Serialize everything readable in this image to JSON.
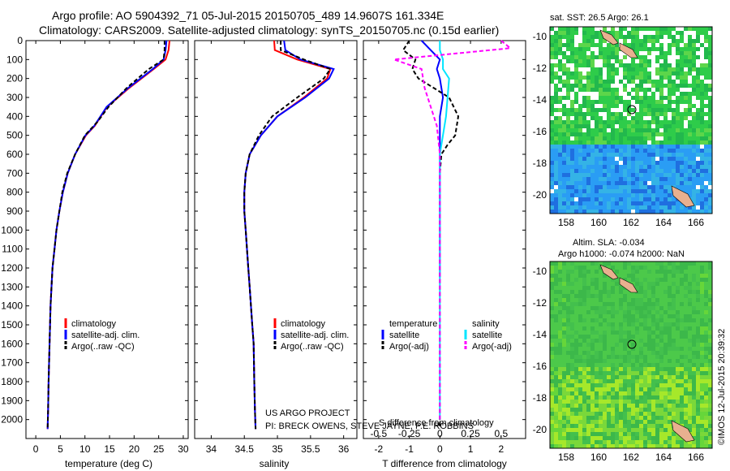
{
  "header": {
    "line1": "Argo profile: AO 5904392_71 05-Jul-2015 20150705_489 14.9607S 161.334E",
    "line2": "Climatology: CARS2009. Satellite-adjusted climatology: synTS_20150705.nc (0.15d earlier)"
  },
  "colors": {
    "climatology": "#ff0000",
    "satellite": "#0000ff",
    "argo": "#000000",
    "salinity_satellite": "#00e5ff",
    "salinity_argo": "#ff00ff"
  },
  "panels": {
    "temperature": {
      "xlabel": "temperature (deg C)",
      "xticks": [
        "0",
        "5",
        "10",
        "15",
        "20",
        "25",
        "30"
      ],
      "legend": [
        "climatology",
        "satellite-adj. clim.",
        "Argo(..raw -QC)"
      ]
    },
    "salinity": {
      "xlabel": "salinity",
      "xticks": [
        "34",
        "34.5",
        "35",
        "35.5",
        "36"
      ],
      "legend": [
        "climatology",
        "satellite-adj. clim.",
        "Argo(..raw -QC)"
      ],
      "credit1": "US ARGO PROJECT",
      "credit2": "PI: BRECK OWENS, STEVE JAYNE, P.E. ROBBINS"
    },
    "difference": {
      "xlabel": "T difference from climatology",
      "xticks": [
        "-2",
        "-1",
        "0",
        "1",
        "2"
      ],
      "top_label": "S difference from climatology",
      "top_ticks": [
        "-0.5",
        "-0.25",
        "0",
        "0.25",
        "0.5"
      ],
      "legend_temperature_title": "temperature",
      "legend_salinity_title": "salinity",
      "legend_items": [
        "satellite",
        "Argo(-adj)",
        "satellite",
        "Argo(-adj)"
      ]
    },
    "depth_ticks": [
      "0",
      "100",
      "200",
      "300",
      "400",
      "500",
      "600",
      "700",
      "800",
      "900",
      "1000",
      "1100",
      "1200",
      "1300",
      "1400",
      "1500",
      "1600",
      "1700",
      "1800",
      "1900",
      "2000"
    ]
  },
  "maps": {
    "sst_title": "sat. SST: 26.5  Argo: 26.1",
    "sla_title1": "Altim. SLA: -0.034",
    "sla_title2": "Argo h1000: -0.074  h2000: NaN",
    "lat_ticks": [
      "-10",
      "-12",
      "-14",
      "-16",
      "-18",
      "-20"
    ],
    "lon_ticks": [
      "158",
      "160",
      "162",
      "164",
      "166"
    ]
  },
  "footer": {
    "stamp": "©IMOS 12-Jul-2015 20:39:32"
  },
  "chart_data": [
    {
      "type": "line",
      "title": "",
      "xlabel": "temperature (deg C)",
      "ylabel": "",
      "xlim": [
        -2,
        31
      ],
      "ylim": [
        2100,
        0
      ],
      "series": [
        {
          "name": "climatology",
          "x": [
            27.2,
            27.0,
            26.4,
            24.0,
            19.0,
            14.5,
            12.0,
            10.2,
            8.0,
            6.5,
            5.5,
            4.8,
            4.2,
            3.8,
            3.4,
            3.2,
            3.0,
            2.9,
            2.8,
            2.7,
            2.6,
            2.5,
            2.4
          ],
          "y": [
            0,
            50,
            100,
            150,
            250,
            350,
            450,
            500,
            600,
            700,
            800,
            900,
            1000,
            1100,
            1200,
            1300,
            1400,
            1500,
            1600,
            1700,
            1800,
            1950,
            2050
          ]
        },
        {
          "name": "satellite-adj. clim.",
          "x": [
            26.6,
            26.4,
            26.0,
            23.8,
            18.8,
            14.4,
            11.9,
            10.1,
            8.0,
            6.5,
            5.5,
            4.8,
            4.2,
            3.8,
            3.4,
            3.2,
            3.0,
            2.9,
            2.8,
            2.7,
            2.6,
            2.5,
            2.4
          ],
          "y": [
            0,
            50,
            100,
            150,
            250,
            350,
            450,
            500,
            600,
            700,
            800,
            900,
            1000,
            1100,
            1200,
            1300,
            1400,
            1500,
            1600,
            1700,
            1800,
            1950,
            2050
          ]
        },
        {
          "name": "Argo(..raw -QC)",
          "x": [
            26.2,
            26.2,
            26.0,
            23.0,
            18.5,
            14.8,
            12.5,
            10.0,
            8.0,
            6.4,
            5.4,
            4.8,
            4.2,
            3.8,
            3.4,
            3.2,
            3.0,
            2.9,
            2.8,
            2.7,
            2.6,
            2.5,
            2.4
          ],
          "y": [
            0,
            50,
            100,
            150,
            250,
            350,
            430,
            500,
            600,
            700,
            800,
            900,
            1000,
            1100,
            1200,
            1300,
            1400,
            1500,
            1600,
            1700,
            1800,
            1950,
            2050
          ]
        }
      ]
    },
    {
      "type": "line",
      "title": "",
      "xlabel": "salinity",
      "ylabel": "",
      "xlim": [
        33.75,
        36.2
      ],
      "ylim": [
        2100,
        0
      ],
      "series": [
        {
          "name": "climatology",
          "x": [
            34.95,
            34.96,
            35.3,
            35.8,
            35.75,
            35.4,
            35.0,
            34.75,
            34.58,
            34.52,
            34.5,
            34.5,
            34.52,
            34.54,
            34.56,
            34.58,
            34.6,
            34.62,
            34.64,
            34.65,
            34.66,
            34.67
          ],
          "y": [
            0,
            50,
            100,
            150,
            200,
            300,
            400,
            500,
            600,
            700,
            800,
            900,
            1000,
            1100,
            1200,
            1300,
            1400,
            1500,
            1600,
            1800,
            1950,
            2050
          ]
        },
        {
          "name": "satellite-adj. clim.",
          "x": [
            35.1,
            35.12,
            35.35,
            35.85,
            35.78,
            35.42,
            35.0,
            34.75,
            34.58,
            34.52,
            34.5,
            34.5,
            34.52,
            34.54,
            34.56,
            34.58,
            34.6,
            34.62,
            34.64,
            34.65,
            34.66,
            34.67
          ],
          "y": [
            0,
            50,
            100,
            150,
            200,
            300,
            400,
            500,
            600,
            700,
            800,
            900,
            1000,
            1100,
            1200,
            1300,
            1400,
            1500,
            1600,
            1800,
            1950,
            2050
          ]
        },
        {
          "name": "Argo(..raw -QC)",
          "x": [
            35.05,
            35.05,
            35.4,
            35.8,
            35.7,
            35.3,
            34.92,
            34.72,
            34.58,
            34.52,
            34.5,
            34.5,
            34.52,
            34.54,
            34.56,
            34.58,
            34.6,
            34.62,
            34.64,
            34.65,
            34.66,
            34.67
          ],
          "y": [
            0,
            50,
            100,
            150,
            200,
            300,
            400,
            500,
            600,
            700,
            800,
            900,
            1000,
            1100,
            1200,
            1300,
            1400,
            1500,
            1600,
            1800,
            1950,
            2050
          ]
        }
      ]
    },
    {
      "type": "line",
      "title": "",
      "xlabel": "T difference from climatology",
      "ylabel": "",
      "xlim": [
        -2.5,
        2.8
      ],
      "ylim": [
        2100,
        0
      ],
      "series": [
        {
          "name": "satellite",
          "x": [
            -0.6,
            -0.3,
            0.0,
            -0.1,
            0.0,
            0.1,
            0.0,
            0.0,
            0.0,
            0.0,
            0.0,
            0.0,
            0.0,
            0.0
          ],
          "y": [
            0,
            50,
            100,
            150,
            200,
            300,
            400,
            500,
            600,
            700,
            800,
            1000,
            1200,
            1250
          ]
        },
        {
          "name": "Argo(-adj)",
          "x": [
            -1.0,
            -1.2,
            -0.8,
            -0.9,
            -0.7,
            0.3,
            0.6,
            0.5,
            0.25,
            0.05,
            0.0,
            0.0,
            0.0,
            0.0,
            0.0
          ],
          "y": [
            0,
            50,
            100,
            150,
            200,
            300,
            400,
            500,
            550,
            600,
            700,
            1000,
            1500,
            1900,
            2050
          ]
        },
        {
          "name": "satellite",
          "x": [
            0.0,
            0.0,
            0.1,
            0.1,
            0.3,
            0.2,
            0.0,
            0.0,
            0.0,
            0.0,
            0.0
          ],
          "y": [
            0,
            50,
            100,
            150,
            200,
            400,
            600,
            800,
            1200,
            1600,
            2000
          ]
        },
        {
          "name": "Argo(-adj)",
          "x": [
            2.0,
            2.3,
            -1.5,
            -0.6,
            -0.5,
            -0.1,
            0.0,
            0.0,
            0.0
          ],
          "y": [
            0,
            40,
            100,
            150,
            250,
            450,
            600,
            1000,
            2000
          ]
        }
      ]
    }
  ]
}
